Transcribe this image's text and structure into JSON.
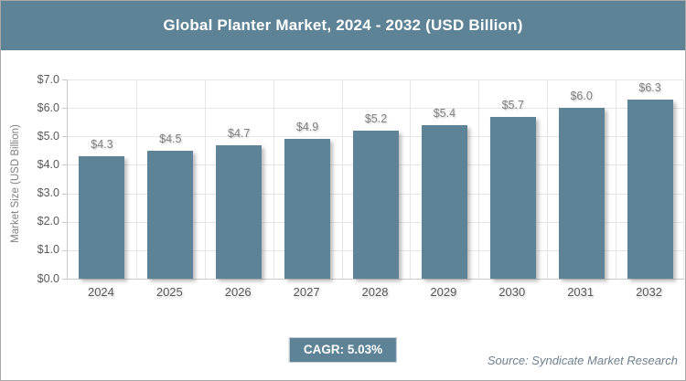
{
  "window": {
    "border_color": "#a9a9a9",
    "background": "#ffffff"
  },
  "header": {
    "title": "Global Planter Market, 2024 - 2032 (USD Billion)",
    "background": "#5e8397",
    "text_color": "#ffffff"
  },
  "chart_data": {
    "type": "bar",
    "title": "Global Planter Market, 2024 - 2032 (USD Billion)",
    "categories": [
      "2024",
      "2025",
      "2026",
      "2027",
      "2028",
      "2029",
      "2030",
      "2031",
      "2032"
    ],
    "values": [
      4.3,
      4.5,
      4.7,
      4.9,
      5.2,
      5.4,
      5.7,
      6.0,
      6.3
    ],
    "data_labels": [
      "$4.3",
      "$4.5",
      "$4.7",
      "$4.9",
      "$5.2",
      "$5.4",
      "$5.7",
      "$6.0",
      "$6.3"
    ],
    "xlabel": "",
    "ylabel": "Market Size (USD Billion)",
    "ylim": [
      0,
      7
    ],
    "ytick_labels": [
      "$0.0",
      "$1.0",
      "$2.0",
      "$3.0",
      "$4.0",
      "$5.0",
      "$6.0",
      "$7.0"
    ],
    "grid": true,
    "legend_position": "none",
    "bar_color": "#5e8397",
    "value_label_color": "#7f7f7f",
    "axis_text_color": "#595959",
    "gridline_color": "#e6e6e6"
  },
  "footer": {
    "cagr_badge": "CAGR: 5.03%",
    "badge_background": "#5e8397",
    "source": "Source: Syndicate Market Research"
  }
}
